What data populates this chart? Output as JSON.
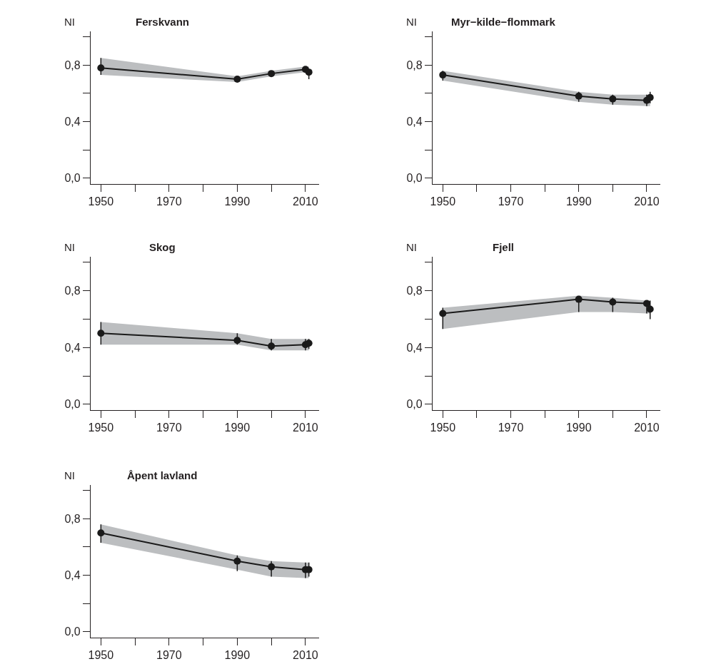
{
  "chart_data": [
    {
      "type": "line",
      "title": "Ferskvann",
      "ylabel": "NI",
      "x": [
        1950,
        1990,
        2000,
        2010,
        2011
      ],
      "xlim": [
        1947,
        2014
      ],
      "ylim": [
        -0.04,
        1.04
      ],
      "xticks": [
        1950,
        {
          "value": 1960,
          "label": null
        },
        1970,
        {
          "value": 1980,
          "label": null
        },
        1990,
        {
          "value": 2000,
          "label": null
        },
        2010
      ],
      "yticks": [
        {
          "value": 0,
          "label": "0,0"
        },
        {
          "value": 0.2,
          "label": null
        },
        {
          "value": 0.4,
          "label": "0,4"
        },
        {
          "value": 0.6,
          "label": null
        },
        {
          "value": 0.8,
          "label": "0,8"
        },
        {
          "value": 1.0,
          "label": null
        }
      ],
      "marker": "circle",
      "series": [
        {
          "color": "#1a1a1a",
          "values": [
            0.78,
            0.7,
            0.74,
            0.77,
            0.75
          ],
          "errors": [
            [
              0.73,
              0.85
            ],
            [
              0.68,
              0.72
            ],
            [
              0.72,
              0.76
            ],
            [
              0.75,
              0.79
            ],
            [
              0.7,
              0.77
            ]
          ],
          "lower": [
            0.73,
            0.68,
            0.72,
            0.75,
            0.75
          ],
          "upper": [
            0.85,
            0.72,
            0.76,
            0.79,
            0.79
          ]
        }
      ]
    },
    {
      "type": "line",
      "title": "Myr−kilde−flommark",
      "ylabel": "NI",
      "x": [
        1950,
        1990,
        2000,
        2010,
        2011
      ],
      "xlim": [
        1947,
        2014
      ],
      "ylim": [
        -0.04,
        1.04
      ],
      "xticks": [
        1950,
        {
          "value": 1960,
          "label": null
        },
        1970,
        {
          "value": 1980,
          "label": null
        },
        1990,
        {
          "value": 2000,
          "label": null
        },
        2010
      ],
      "yticks": [
        {
          "value": 0,
          "label": "0,0"
        },
        {
          "value": 0.2,
          "label": null
        },
        {
          "value": 0.4,
          "label": "0,4"
        },
        {
          "value": 0.6,
          "label": null
        },
        {
          "value": 0.8,
          "label": "0,8"
        },
        {
          "value": 1.0,
          "label": null
        }
      ],
      "marker": "circle",
      "series": [
        {
          "color": "#1a1a1a",
          "values": [
            0.73,
            0.58,
            0.56,
            0.55,
            0.57
          ],
          "errors": [
            [
              0.69,
              0.76
            ],
            [
              0.54,
              0.61
            ],
            [
              0.52,
              0.59
            ],
            [
              0.51,
              0.59
            ],
            [
              0.53,
              0.61
            ]
          ],
          "lower": [
            0.69,
            0.54,
            0.52,
            0.51,
            0.51
          ],
          "upper": [
            0.76,
            0.61,
            0.59,
            0.59,
            0.59
          ]
        }
      ]
    },
    {
      "type": "line",
      "title": "Skog",
      "ylabel": "NI",
      "x": [
        1950,
        1990,
        2000,
        2010,
        2011
      ],
      "xlim": [
        1947,
        2014
      ],
      "ylim": [
        -0.04,
        1.04
      ],
      "xticks": [
        1950,
        {
          "value": 1960,
          "label": null
        },
        1970,
        {
          "value": 1980,
          "label": null
        },
        1990,
        {
          "value": 2000,
          "label": null
        },
        2010
      ],
      "yticks": [
        {
          "value": 0,
          "label": "0,0"
        },
        {
          "value": 0.2,
          "label": null
        },
        {
          "value": 0.4,
          "label": "0,4"
        },
        {
          "value": 0.6,
          "label": null
        },
        {
          "value": 0.8,
          "label": "0,8"
        },
        {
          "value": 1.0,
          "label": null
        }
      ],
      "marker": "circle",
      "series": [
        {
          "color": "#1a1a1a",
          "values": [
            0.5,
            0.45,
            0.41,
            0.42,
            0.43
          ],
          "errors": [
            [
              0.42,
              0.58
            ],
            [
              0.42,
              0.5
            ],
            [
              0.38,
              0.46
            ],
            [
              0.38,
              0.46
            ],
            [
              0.39,
              0.46
            ]
          ],
          "lower": [
            0.42,
            0.42,
            0.38,
            0.38,
            0.38
          ],
          "upper": [
            0.58,
            0.5,
            0.46,
            0.46,
            0.46
          ]
        }
      ]
    },
    {
      "type": "line",
      "title": "Fjell",
      "ylabel": "NI",
      "x": [
        1950,
        1990,
        2000,
        2010,
        2011
      ],
      "xlim": [
        1947,
        2014
      ],
      "ylim": [
        -0.04,
        1.04
      ],
      "xticks": [
        1950,
        {
          "value": 1960,
          "label": null
        },
        1970,
        {
          "value": 1980,
          "label": null
        },
        1990,
        {
          "value": 2000,
          "label": null
        },
        2010
      ],
      "yticks": [
        {
          "value": 0,
          "label": "0,0"
        },
        {
          "value": 0.2,
          "label": null
        },
        {
          "value": 0.4,
          "label": "0,4"
        },
        {
          "value": 0.6,
          "label": null
        },
        {
          "value": 0.8,
          "label": "0,8"
        },
        {
          "value": 1.0,
          "label": null
        }
      ],
      "marker": "circle",
      "series": [
        {
          "color": "#1a1a1a",
          "values": [
            0.64,
            0.74,
            0.72,
            0.71,
            0.67
          ],
          "errors": [
            [
              0.53,
              0.68
            ],
            [
              0.65,
              0.76
            ],
            [
              0.65,
              0.75
            ],
            [
              0.64,
              0.73
            ],
            [
              0.6,
              0.73
            ]
          ],
          "lower": [
            0.53,
            0.65,
            0.65,
            0.64,
            0.64
          ],
          "upper": [
            0.68,
            0.765,
            0.75,
            0.73,
            0.73
          ]
        }
      ]
    },
    {
      "type": "line",
      "title": "Åpent lavland",
      "ylabel": "NI",
      "x": [
        1950,
        1990,
        2000,
        2010,
        2011
      ],
      "xlim": [
        1947,
        2014
      ],
      "ylim": [
        -0.04,
        1.04
      ],
      "xticks": [
        1950,
        {
          "value": 1960,
          "label": null
        },
        1970,
        {
          "value": 1980,
          "label": null
        },
        1990,
        {
          "value": 2000,
          "label": null
        },
        2010
      ],
      "yticks": [
        {
          "value": 0,
          "label": "0,0"
        },
        {
          "value": 0.2,
          "label": null
        },
        {
          "value": 0.4,
          "label": "0,4"
        },
        {
          "value": 0.6,
          "label": null
        },
        {
          "value": 0.8,
          "label": "0,8"
        },
        {
          "value": 1.0,
          "label": null
        }
      ],
      "marker": "circle",
      "series": [
        {
          "color": "#1a1a1a",
          "values": [
            0.7,
            0.5,
            0.46,
            0.44,
            0.44
          ],
          "errors": [
            [
              0.63,
              0.76
            ],
            [
              0.43,
              0.54
            ],
            [
              0.39,
              0.5
            ],
            [
              0.38,
              0.49
            ],
            [
              0.39,
              0.49
            ]
          ],
          "lower": [
            0.63,
            0.44,
            0.39,
            0.38,
            0.38
          ],
          "upper": [
            0.76,
            0.54,
            0.5,
            0.49,
            0.49
          ]
        }
      ]
    }
  ]
}
